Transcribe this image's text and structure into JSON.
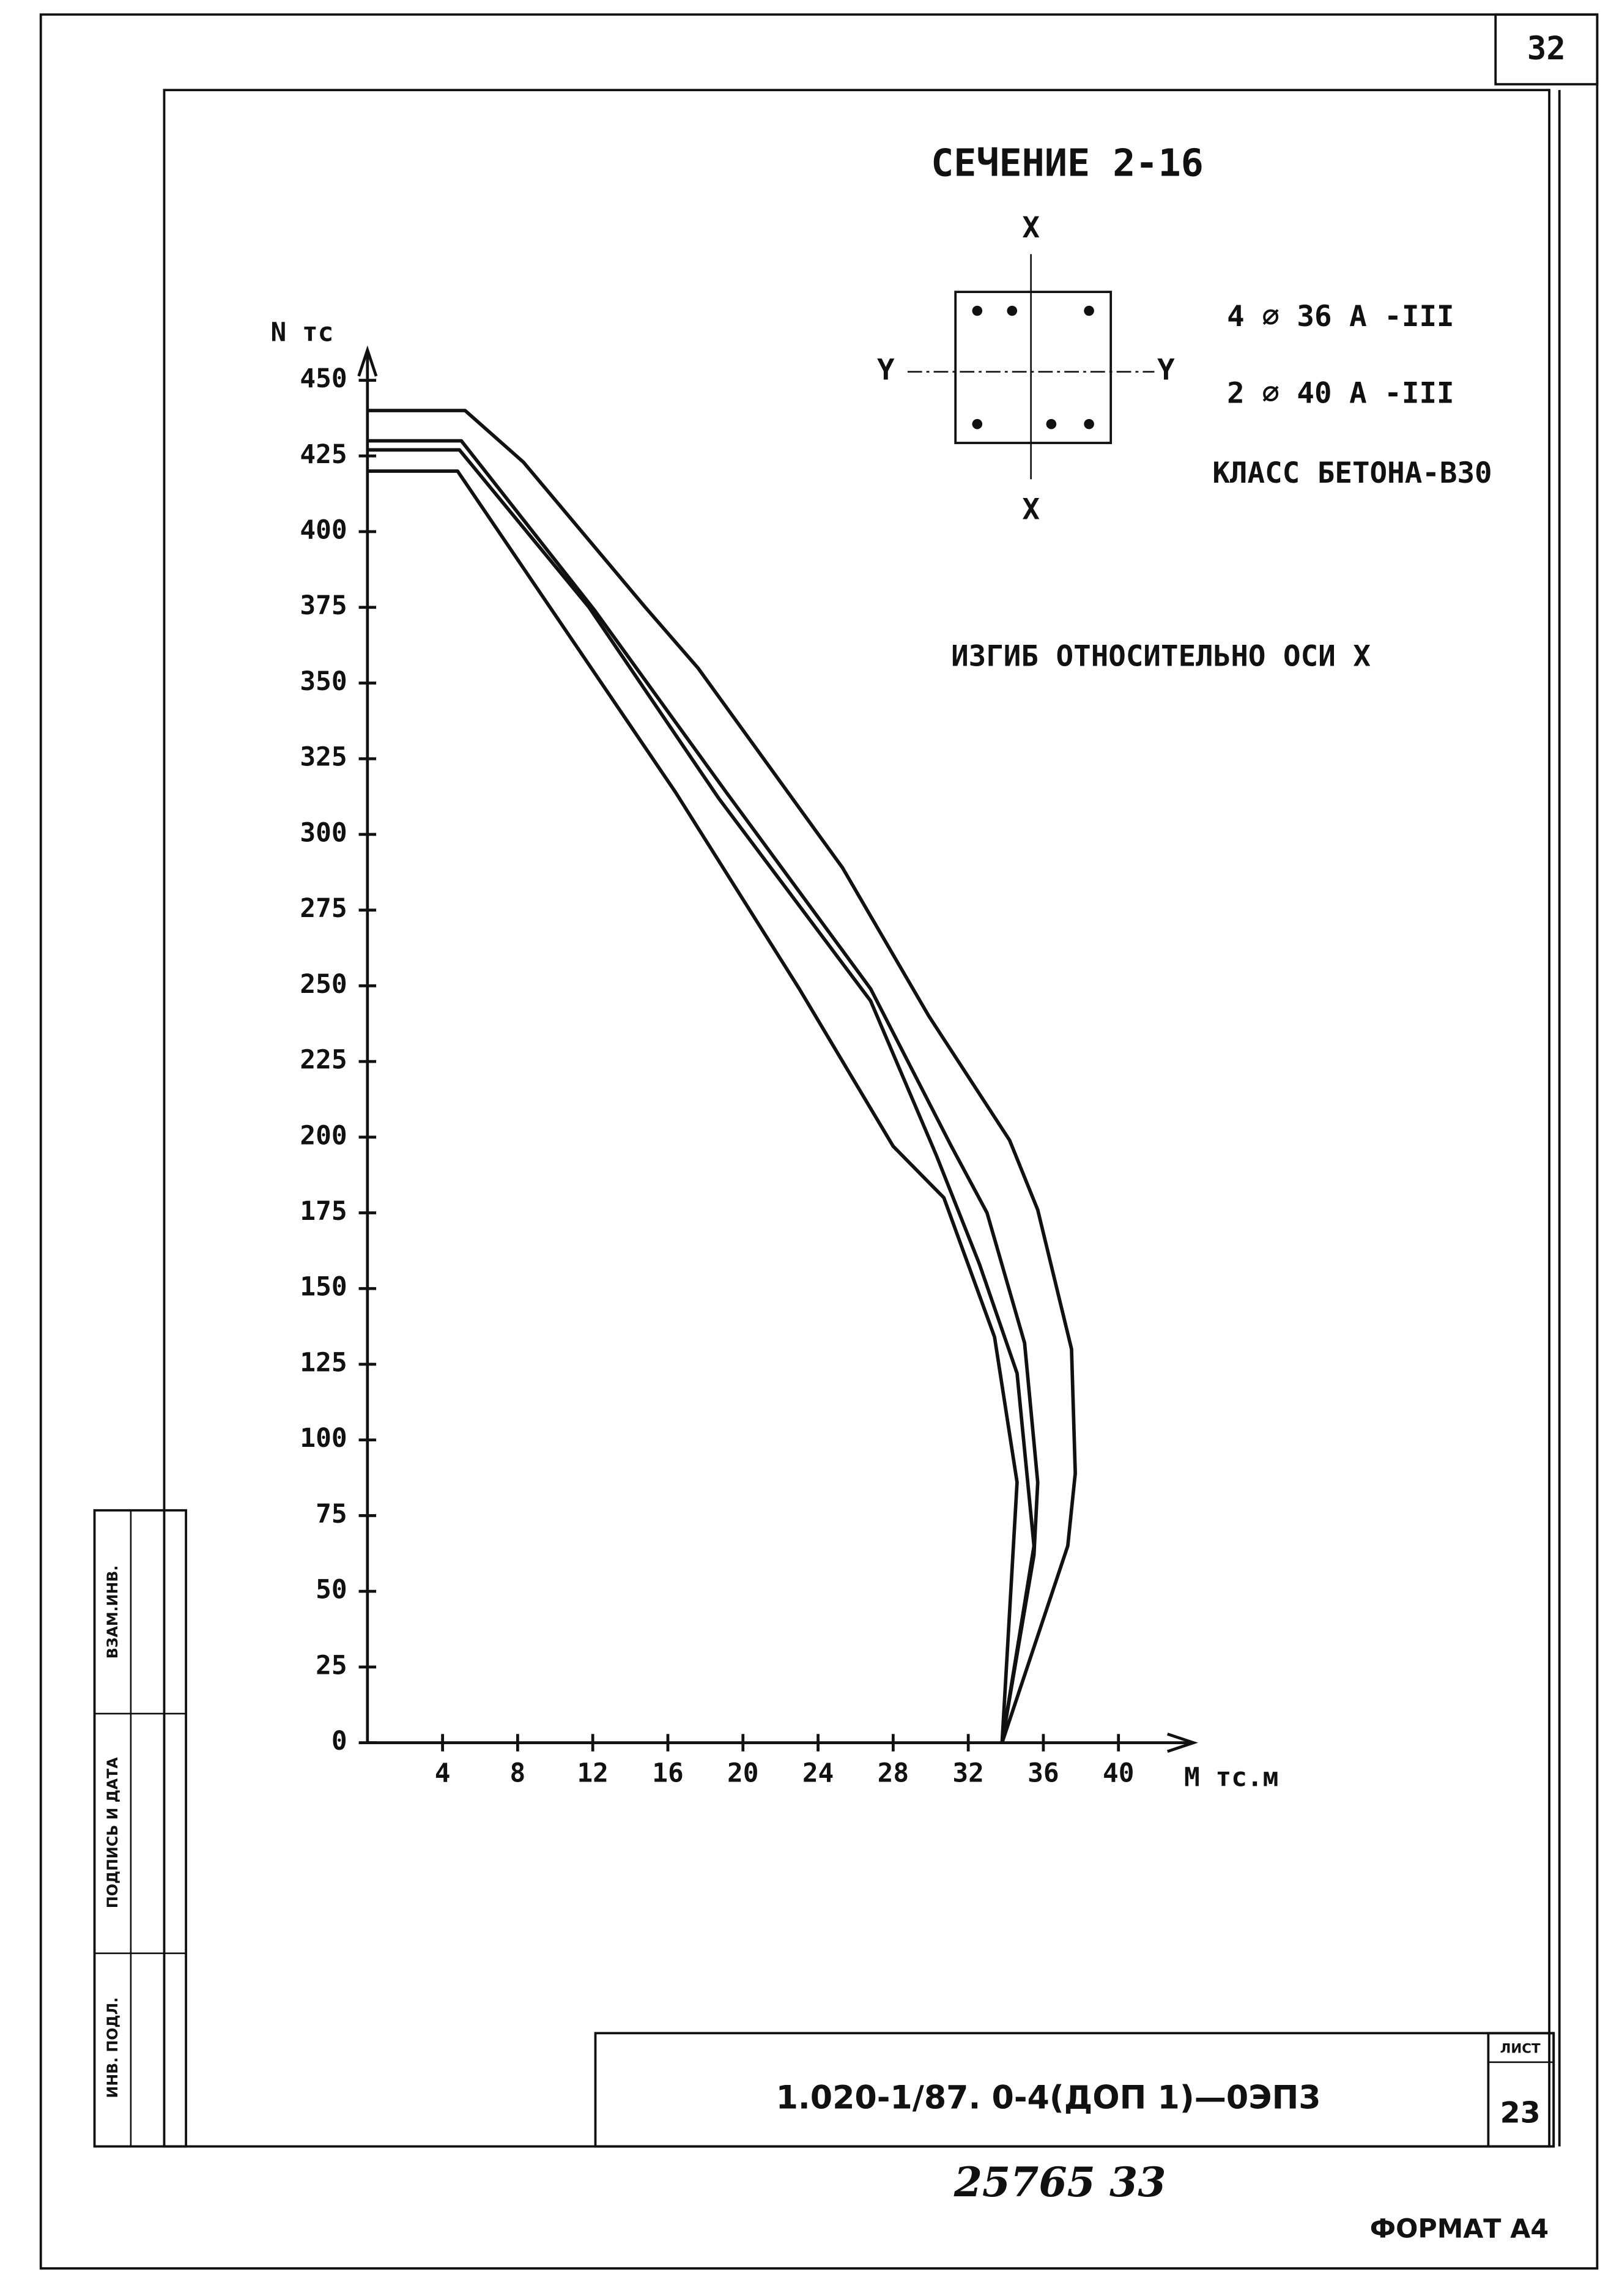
{
  "page_number": "32",
  "chart_data": {
    "type": "line",
    "title": "СЕЧЕНИЕ 2-16",
    "x_label": "M тс.м",
    "y_label": "N тс",
    "annotations": [
      "4 ⌀ 36 А -III",
      "2 ⌀ 40 А -III",
      "КЛАСС БЕТОНА-В30",
      "ИЗГИБ ОТНОСИТЕЛЬНО ОСИ X"
    ],
    "section_axes": {
      "top": "X",
      "bottom": "X",
      "left": "Y",
      "right": "Y"
    },
    "xlim": [
      0,
      44
    ],
    "ylim": [
      0,
      460
    ],
    "xticks": [
      4,
      8,
      12,
      16,
      20,
      24,
      28,
      32,
      36,
      40
    ],
    "yticks": [
      0,
      25,
      50,
      75,
      100,
      125,
      150,
      175,
      200,
      225,
      250,
      275,
      300,
      325,
      350,
      375,
      400,
      425,
      450
    ],
    "series": [
      {
        "color": "#111111",
        "x": [
          0,
          5.2,
          8.3,
          14.8,
          17.6,
          25.3,
          29.9,
          34.2,
          35.7,
          37.5,
          37.7,
          37.3,
          33.8
        ],
        "values": [
          440,
          440,
          423,
          375,
          355,
          289,
          240,
          199,
          176,
          130,
          89,
          65,
          0
        ]
      },
      {
        "color": "#111111",
        "x": [
          0,
          5.0,
          12.1,
          19.1,
          26.8,
          31.1,
          33.0,
          35.0,
          35.7,
          35.5,
          33.8
        ],
        "values": [
          430,
          430,
          374,
          314,
          249,
          197,
          175,
          132,
          86,
          62,
          0
        ]
      },
      {
        "color": "#111111",
        "x": [
          0,
          4.9,
          11.8,
          18.7,
          26.8,
          30.3,
          32.6,
          34.6,
          35.5,
          33.8
        ],
        "values": [
          427,
          427,
          375,
          312,
          245,
          194,
          158,
          122,
          65,
          0
        ]
      },
      {
        "color": "#111111",
        "x": [
          0,
          4.8,
          10.6,
          16.4,
          23.0,
          28.0,
          30.7,
          33.4,
          34.6,
          33.8
        ],
        "values": [
          420,
          420,
          367,
          314,
          249,
          197,
          180,
          134,
          86,
          0
        ]
      }
    ]
  },
  "side_labels": [
    "ВЗАМ.ИНВ.",
    "ПОДПИСЬ И ДАТА",
    "ИНВ. ПОДЛ."
  ],
  "stamp": {
    "code": "1.020-1/87. 0-4(ДОП 1)—0ЭП3",
    "sheet_label": "ЛИСТ",
    "sheet": "23"
  },
  "footer": {
    "number": "25765   33",
    "format": "ФОРМАТ А4"
  }
}
